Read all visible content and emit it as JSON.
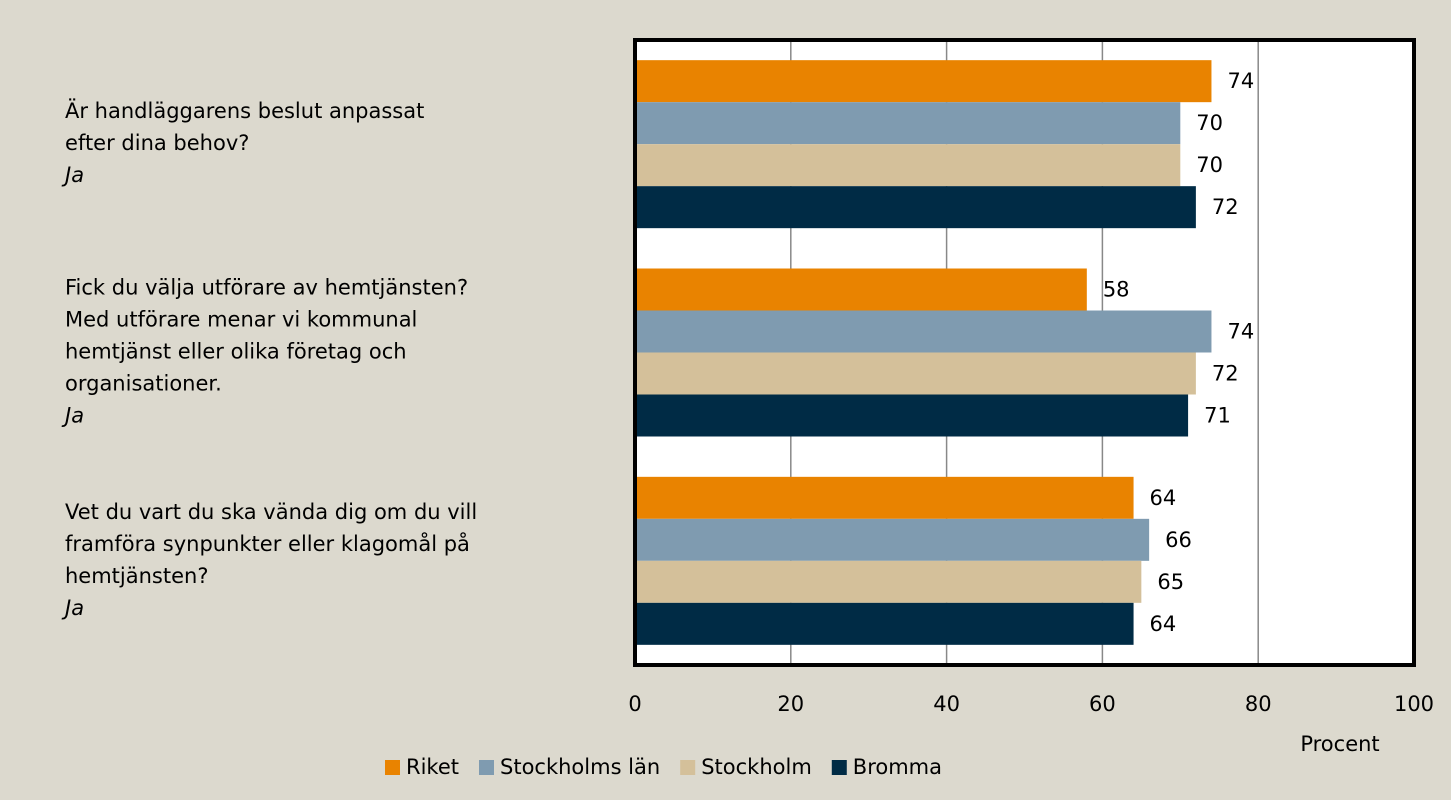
{
  "chart_data": {
    "type": "bar",
    "orientation": "horizontal",
    "categories": [
      [
        "Är handläggarens beslut anpassat",
        "efter dina behov?",
        "Ja"
      ],
      [
        "Fick du välja utförare av hemtjänsten?",
        "Med utförare menar vi kommunal",
        "hemtjänst eller olika företag och",
        "organisationer.",
        "Ja"
      ],
      [
        "Vet du vart du ska vända dig om du vill",
        "framföra synpunkter eller klagomål på",
        "hemtjänsten?",
        "Ja"
      ]
    ],
    "series": [
      {
        "name": "Riket",
        "color": "#e98300",
        "values": [
          74,
          58,
          64
        ]
      },
      {
        "name": "Stockholms län",
        "color": "#7f9bb0",
        "values": [
          70,
          74,
          66
        ]
      },
      {
        "name": "Stockholm",
        "color": "#d4c09a",
        "values": [
          70,
          72,
          65
        ]
      },
      {
        "name": "Bromma",
        "color": "#002b45",
        "values": [
          72,
          71,
          64
        ]
      }
    ],
    "xlabel": "Procent",
    "xlim": [
      0,
      100
    ],
    "xticks": [
      0,
      20,
      40,
      60,
      80,
      100
    ],
    "grid": true,
    "legend": "bottom"
  }
}
